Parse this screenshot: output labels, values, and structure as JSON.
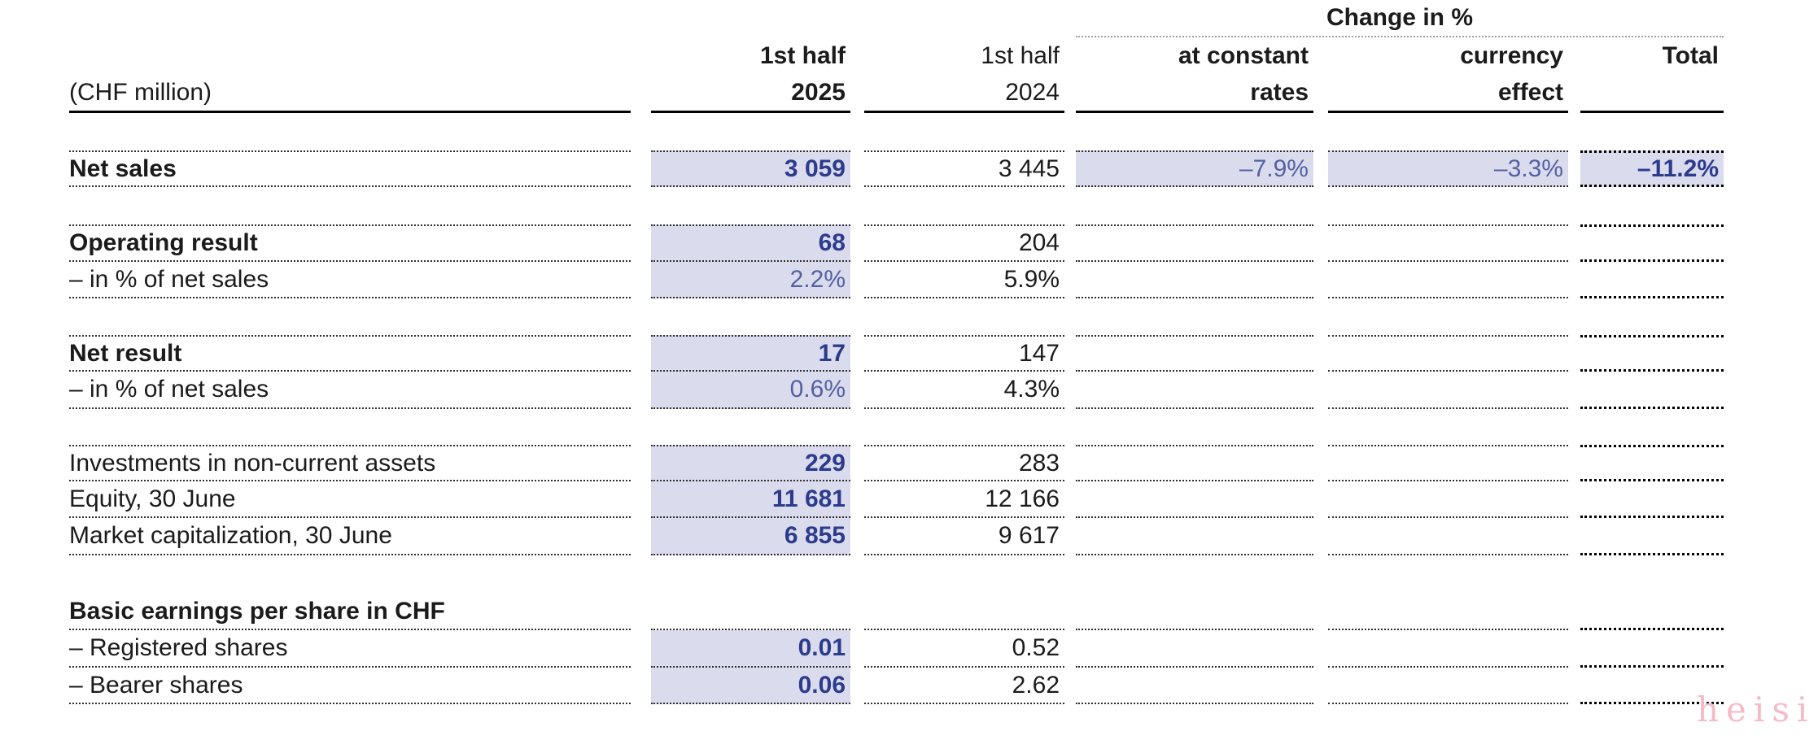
{
  "page": {
    "unit_label": "(CHF million)",
    "watermark": "heisi"
  },
  "header": {
    "change_group_label": "Change in %",
    "columns": {
      "h2025": {
        "line1": "1st half",
        "line2": "2025"
      },
      "h2024": {
        "line1": "1st half",
        "line2": "2024"
      },
      "constant": {
        "line1": "at constant",
        "line2": "rates"
      },
      "currency": {
        "line1": "currency",
        "line2": "effect"
      },
      "total": {
        "line1": "Total"
      }
    }
  },
  "rows": [
    {
      "label": "Net sales",
      "v2025": "3 059",
      "v2024": "3 445",
      "constant": "–7.9%",
      "currency": "–3.3%",
      "total": "–11.2%"
    },
    {
      "label": "Operating result",
      "v2025": "68",
      "v2024": "204"
    },
    {
      "label": "– in % of net sales",
      "v2025": "2.2%",
      "v2024": "5.9%"
    },
    {
      "label": "Net result",
      "v2025": "17",
      "v2024": "147"
    },
    {
      "label": "– in % of net sales",
      "v2025": "0.6%",
      "v2024": "4.3%"
    },
    {
      "label": "Investments in non-current assets",
      "v2025": "229",
      "v2024": "283"
    },
    {
      "label": "Equity, 30 June",
      "v2025": "11 681",
      "v2024": "12 166"
    },
    {
      "label": "Market capitalization, 30 June",
      "v2025": "6 855",
      "v2024": "9 617"
    },
    {
      "label": "Basic earnings per share in CHF"
    },
    {
      "label": "– Registered shares",
      "v2025": "0.01",
      "v2024": "0.52"
    },
    {
      "label": "– Bearer shares",
      "v2025": "0.06",
      "v2024": "2.62"
    }
  ],
  "colors": {
    "highlight_lavender": "#dadcee",
    "value_blue_bold": "#2c3b8c",
    "value_blue_regular": "#5560a1",
    "text_black": "#1b1b1b",
    "watermark_pink": "#f5bac7"
  }
}
